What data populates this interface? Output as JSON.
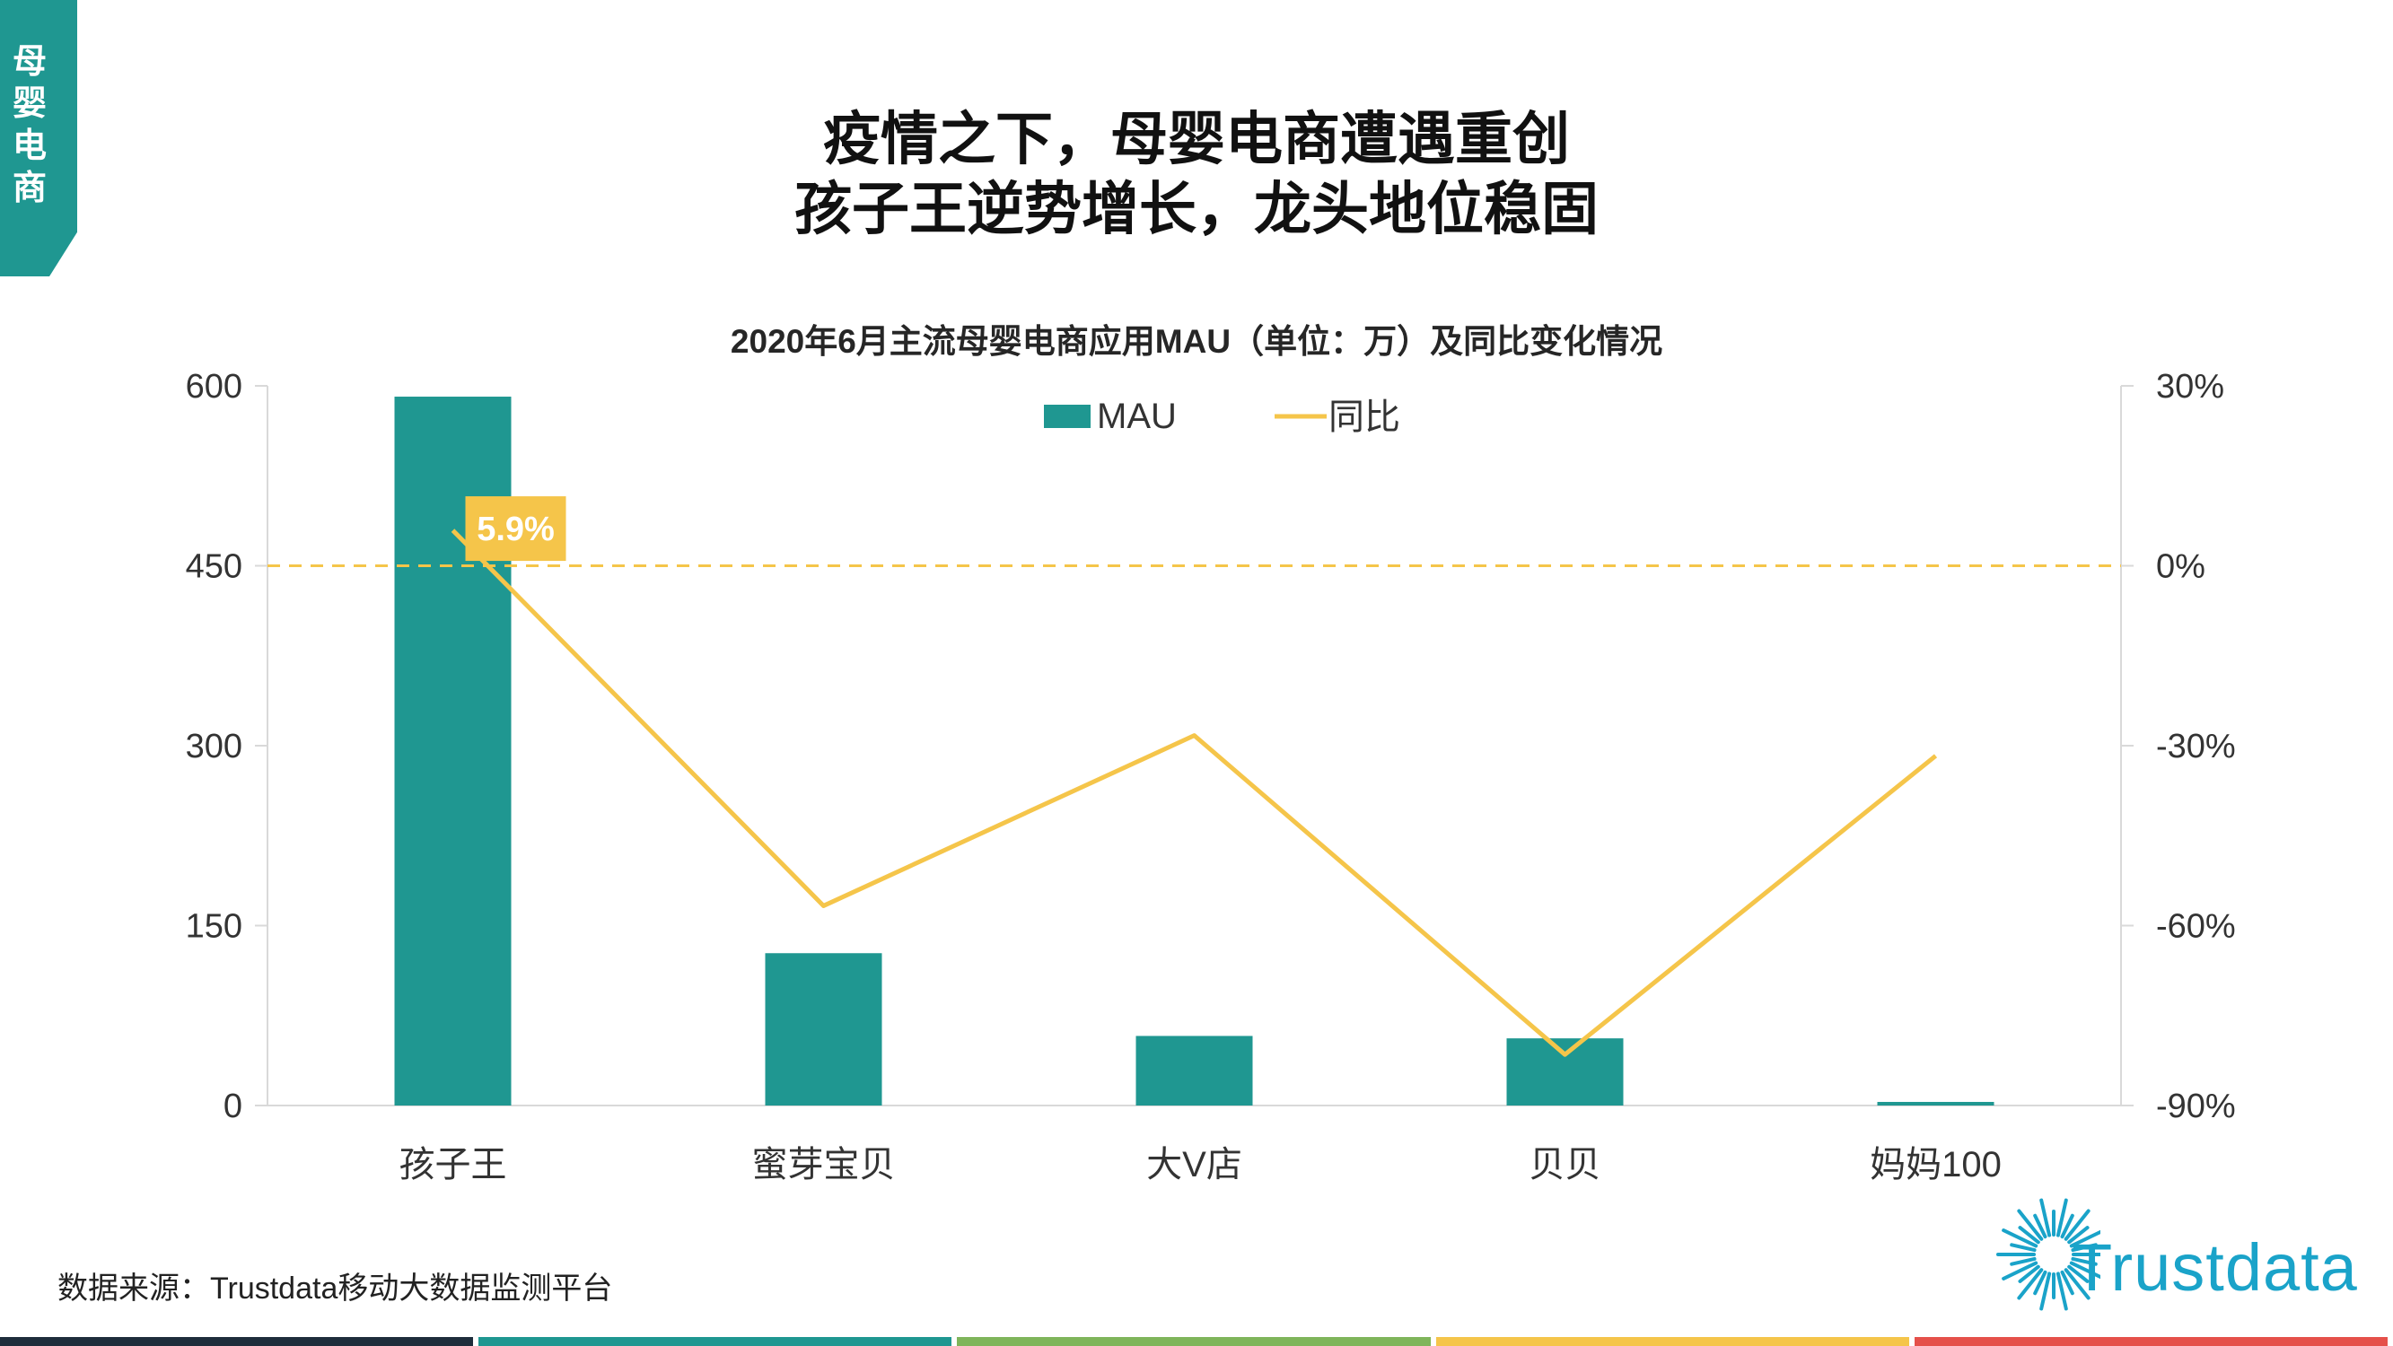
{
  "side_tab": "母婴电商",
  "headline": {
    "line1": "疫情之下，母婴电商遭遇重创",
    "line2": "孩子王逆势增长，龙头地位稳固"
  },
  "source": "数据来源：Trustdata移动大数据监测平台",
  "logo": {
    "text": "Trustdata",
    "color": "#1aa3c9"
  },
  "colors": {
    "accent": "#1f9791",
    "line": "#f5c54a",
    "label_bg": "#f5c54a",
    "bottom_bar": [
      "#1e2d3b",
      "#1f9791",
      "#7fb55a",
      "#f5c54a",
      "#e5504a"
    ]
  },
  "chart_data": {
    "type": "bar",
    "title": "2020年6月主流母婴电商应用MAU（单位：万）及同比变化情况",
    "categories": [
      "孩子王",
      "蜜芽宝贝",
      "大V店",
      "贝贝",
      "妈妈100"
    ],
    "series": [
      {
        "name": "MAU",
        "type": "bar",
        "axis": "left",
        "color": "#1f9791",
        "values": [
          591,
          127,
          58,
          56,
          3
        ]
      },
      {
        "name": "同比",
        "type": "line",
        "axis": "right",
        "color": "#f5c54a",
        "values": [
          0.059,
          -0.567,
          -0.283,
          -0.815,
          -0.317
        ]
      }
    ],
    "y_left": {
      "range": [
        0,
        600
      ],
      "ticks": [
        "0",
        "150",
        "300",
        "450",
        "600"
      ],
      "tick_values": [
        0,
        150,
        300,
        450,
        600
      ]
    },
    "y_right": {
      "range": [
        -0.9,
        0.3
      ],
      "ticks": [
        "-90%",
        "-60%",
        "-30%",
        "0%",
        "30%"
      ],
      "tick_values": [
        -0.9,
        -0.6,
        -0.3,
        0,
        0.3
      ]
    },
    "reference_line": {
      "axis": "right",
      "value": 0,
      "style": "dashed"
    },
    "data_label": {
      "series": "同比",
      "index": 0,
      "text": "5.9%"
    },
    "legend": {
      "placement": "top-center",
      "entries": [
        "MAU",
        "同比"
      ]
    },
    "grid": false
  }
}
